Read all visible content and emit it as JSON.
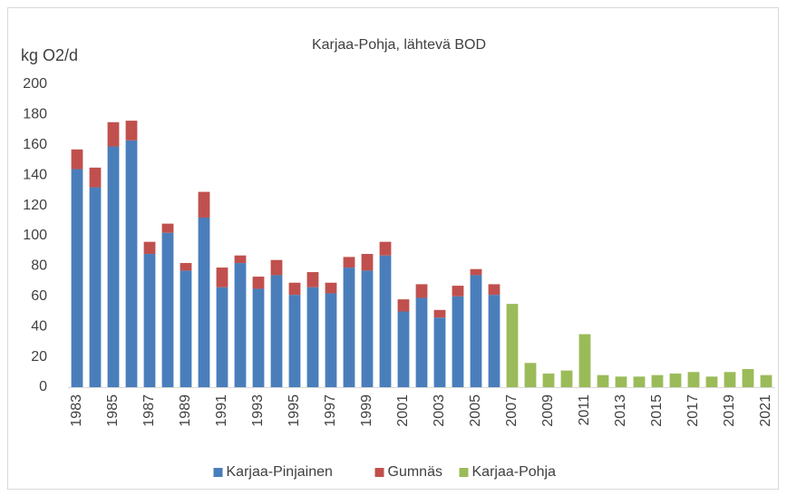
{
  "chart_data": {
    "type": "stacked_bar",
    "title": "Karjaa-Pohja, lähtevä BOD",
    "y_label": "kg O2/d",
    "categories": [
      "1983",
      null,
      "1985",
      null,
      "1987",
      null,
      "1989",
      null,
      "1991",
      null,
      "1993",
      null,
      "1995",
      null,
      "1997",
      null,
      "1999",
      null,
      "2001",
      null,
      "2003",
      null,
      "2005",
      null,
      "2007",
      null,
      "2009",
      null,
      "2011",
      null,
      "2013",
      null,
      "2015",
      null,
      "2017",
      null,
      "2019",
      null,
      "2021"
    ],
    "series": [
      {
        "name": "Karjaa-Pinjainen",
        "color": "#4a7ebb",
        "values": [
          144,
          132,
          159,
          163,
          88,
          102,
          77,
          112,
          66,
          82,
          65,
          74,
          61,
          66,
          62,
          79,
          77,
          87,
          50,
          59,
          46,
          60,
          74,
          61,
          null,
          null,
          null,
          null,
          null,
          null,
          null,
          null,
          null,
          null,
          null,
          null,
          null,
          null,
          null
        ]
      },
      {
        "name": "Gumnäs",
        "color": "#c0504d",
        "values": [
          13,
          13,
          16,
          13,
          8,
          6,
          5,
          17,
          13,
          5,
          8,
          10,
          8,
          10,
          7,
          7,
          11,
          9,
          8,
          9,
          5,
          7,
          4,
          7,
          null,
          null,
          null,
          null,
          null,
          null,
          null,
          null,
          null,
          null,
          null,
          null,
          null,
          null,
          null
        ]
      },
      {
        "name": "Karjaa-Pohja",
        "color": "#9bbb59",
        "values": [
          null,
          null,
          null,
          null,
          null,
          null,
          null,
          null,
          null,
          null,
          null,
          null,
          null,
          null,
          null,
          null,
          null,
          null,
          null,
          null,
          null,
          null,
          null,
          null,
          55,
          16,
          9,
          11,
          35,
          8,
          7,
          7,
          8,
          9,
          10,
          7,
          10,
          12,
          8
        ]
      }
    ],
    "ylim": [
      0,
      200
    ],
    "yticks": [
      0,
      20,
      40,
      60,
      80,
      100,
      120,
      140,
      160,
      180,
      200
    ],
    "grid": false,
    "legend": "bottom"
  }
}
